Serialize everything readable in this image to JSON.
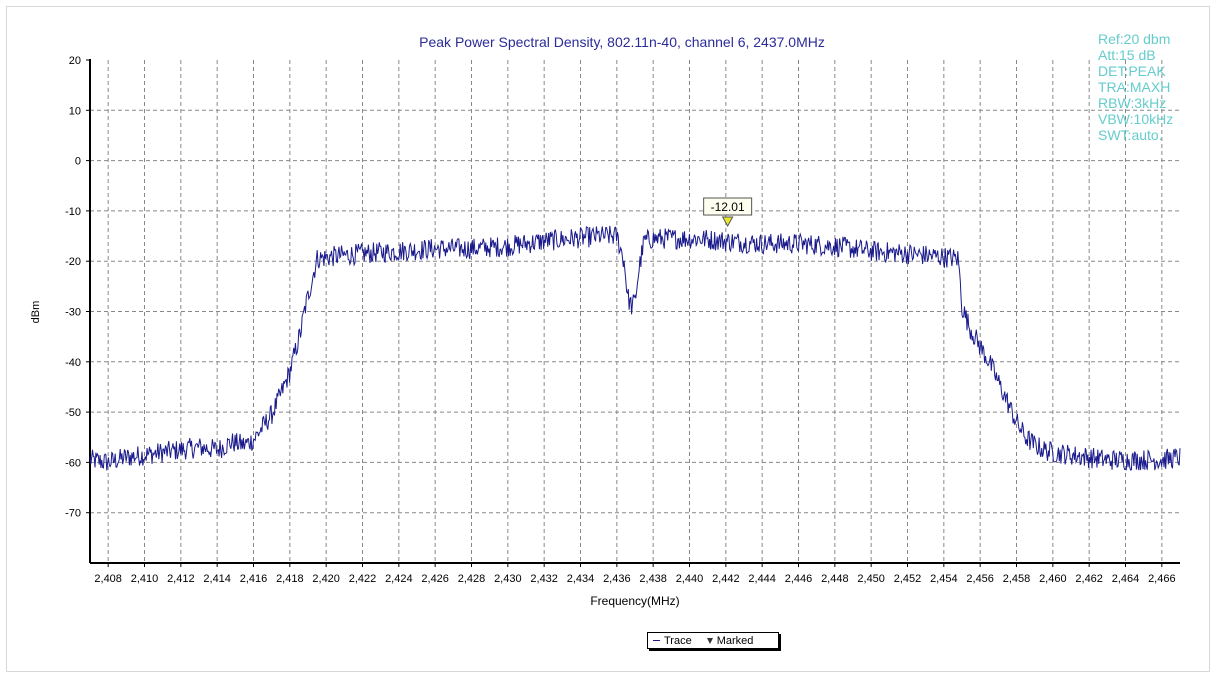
{
  "chart_data": {
    "type": "line",
    "title": "Peak Power Spectral Density, 802.11n-40, channel 6, 2437.0MHz",
    "xlabel": "Frequency(MHz)",
    "ylabel": "dBm",
    "xlim": [
      2407,
      2467
    ],
    "ylim": [
      -80,
      20
    ],
    "yticks": [
      20,
      10,
      0,
      -10,
      -20,
      -30,
      -40,
      -50,
      -60,
      -70
    ],
    "xtick_labels": [
      "2,408",
      "2,410",
      "2,412",
      "2,414",
      "2,416",
      "2,418",
      "2,420",
      "2,422",
      "2,424",
      "2,426",
      "2,428",
      "2,430",
      "2,432",
      "2,434",
      "2,436",
      "2,438",
      "2,440",
      "2,442",
      "2,444",
      "2,446",
      "2,448",
      "2,450",
      "2,452",
      "2,454",
      "2,456",
      "2,458",
      "2,460",
      "2,462",
      "2,464",
      "2,466"
    ],
    "xtick_values": [
      2408,
      2410,
      2412,
      2414,
      2416,
      2418,
      2420,
      2422,
      2424,
      2426,
      2428,
      2430,
      2432,
      2434,
      2436,
      2438,
      2440,
      2442,
      2444,
      2446,
      2448,
      2450,
      2452,
      2454,
      2456,
      2458,
      2460,
      2462,
      2464,
      2466
    ],
    "grid": true,
    "series": [
      {
        "name": "Trace",
        "color": "#1a1a8c",
        "x": [
          2407.0,
          2408.0,
          2409.0,
          2410.0,
          2411.0,
          2412.0,
          2413.0,
          2414.0,
          2414.8,
          2415.5,
          2416.0,
          2416.5,
          2417.0,
          2417.5,
          2418.0,
          2418.3,
          2418.6,
          2418.8,
          2419.5,
          2420.5,
          2422.0,
          2424.0,
          2426.0,
          2428.0,
          2430.0,
          2432.0,
          2433.5,
          2435.0,
          2436.0,
          2436.4,
          2436.6,
          2436.8,
          2437.0,
          2437.2,
          2437.5,
          2438.0,
          2439.0,
          2440.5,
          2442.0,
          2444.0,
          2446.0,
          2448.0,
          2450.0,
          2452.0,
          2453.5,
          2454.8,
          2455.0,
          2455.4,
          2456.0,
          2456.5,
          2457.0,
          2457.5,
          2458.0,
          2458.5,
          2459.0,
          2459.5,
          2460.0,
          2461.0,
          2462.0,
          2463.0,
          2464.0,
          2465.0,
          2466.0,
          2467.0
        ],
        "y": [
          -59.5,
          -60.0,
          -59.0,
          -58.5,
          -58.0,
          -57.5,
          -57.0,
          -57.5,
          -56.0,
          -56.5,
          -55.5,
          -53.0,
          -50.5,
          -46.5,
          -42.0,
          -38.0,
          -34.0,
          -30.0,
          -19.5,
          -19.0,
          -18.5,
          -18.0,
          -17.5,
          -17.5,
          -17.0,
          -16.0,
          -15.5,
          -15.0,
          -15.0,
          -20.0,
          -27.0,
          -29.0,
          -28.0,
          -22.0,
          -16.0,
          -15.5,
          -15.5,
          -15.5,
          -16.0,
          -16.5,
          -16.5,
          -17.0,
          -18.0,
          -18.5,
          -19.0,
          -19.5,
          -29.0,
          -33.0,
          -37.0,
          -40.0,
          -44.0,
          -48.0,
          -52.0,
          -55.0,
          -56.5,
          -57.5,
          -58.0,
          -58.5,
          -59.0,
          -59.5,
          -59.5,
          -59.5,
          -59.5,
          -59.0
        ]
      }
    ],
    "marker": {
      "label": "-12.01",
      "x": 2442.1,
      "y": -12.01,
      "marker_color": "#e8e830"
    },
    "legend": {
      "placement": "bottom-center",
      "items": [
        "Trace",
        "Marked"
      ]
    }
  },
  "instrument_settings": [
    "Ref:20 dbm",
    "Att:15 dB",
    "DET:PEAK",
    "TRA:MAXH",
    "RBW:3kHz",
    "VBW:10kHz",
    "SWT:auto."
  ],
  "colors": {
    "trace": "#1a1a8c",
    "title": "#2b2b99",
    "settings": "#66cccc",
    "grid": "#888888"
  }
}
